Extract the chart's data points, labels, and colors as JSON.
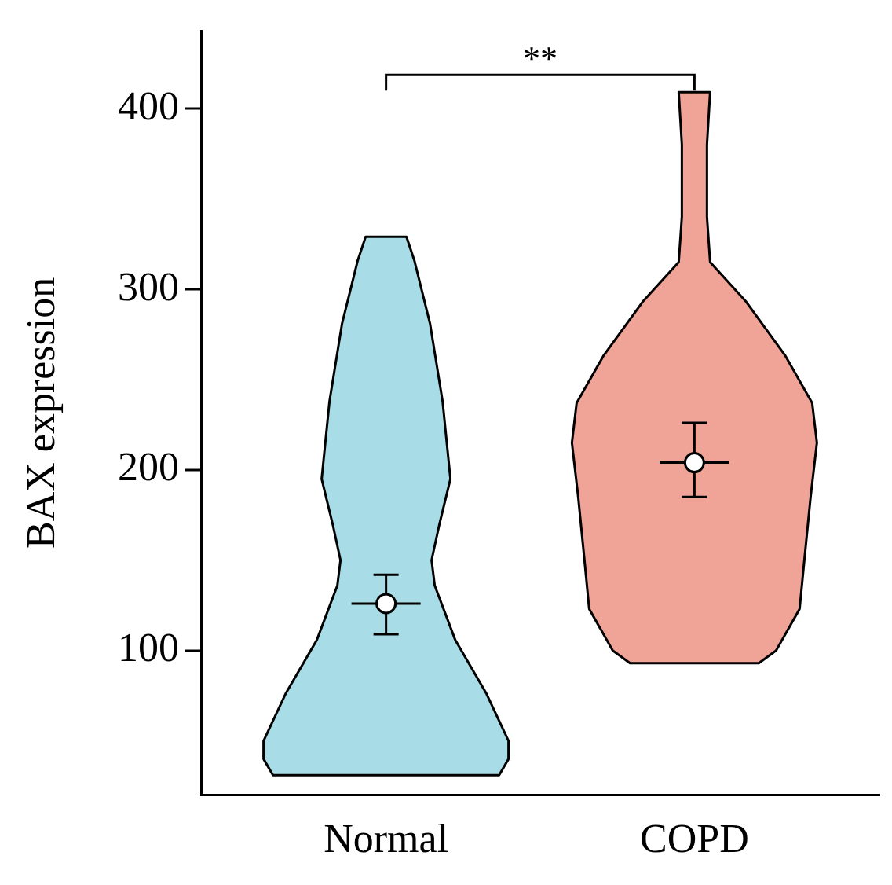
{
  "chart_data": {
    "type": "scatter",
    "ylabel": "BAX expression",
    "categories": [
      "Normal",
      "COPD"
    ],
    "series": [
      {
        "type": "scatter",
        "color": "#ffffff",
        "x": [
          "Normal",
          "COPD"
        ],
        "values": [
          126,
          204
        ],
        "errors": [
          [
            109,
            142
          ],
          [
            185,
            226
          ]
        ]
      }
    ],
    "colors": [
      "#a8dce6",
      "#f0a498"
    ],
    "ylim": [
      20,
      443
    ],
    "yticks": [
      100,
      200,
      300,
      400
    ],
    "marker": "circle",
    "grid": false,
    "legend": false,
    "annotations": [
      "**"
    ]
  }
}
